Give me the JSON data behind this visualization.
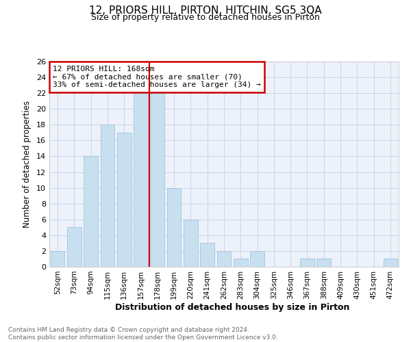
{
  "title": "12, PRIORS HILL, PIRTON, HITCHIN, SG5 3QA",
  "subtitle": "Size of property relative to detached houses in Pirton",
  "xlabel": "Distribution of detached houses by size in Pirton",
  "ylabel": "Number of detached properties",
  "categories": [
    "52sqm",
    "73sqm",
    "94sqm",
    "115sqm",
    "136sqm",
    "157sqm",
    "178sqm",
    "199sqm",
    "220sqm",
    "241sqm",
    "262sqm",
    "283sqm",
    "304sqm",
    "325sqm",
    "346sqm",
    "367sqm",
    "388sqm",
    "409sqm",
    "430sqm",
    "451sqm",
    "472sqm"
  ],
  "values": [
    2,
    5,
    14,
    18,
    17,
    22,
    22,
    10,
    6,
    3,
    2,
    1,
    2,
    0,
    0,
    1,
    1,
    0,
    0,
    0,
    1
  ],
  "bar_color": "#c8dff0",
  "bar_edge_color": "#a0c4e0",
  "vline_x": 5.5,
  "vline_color": "#cc0000",
  "annotation_text": "12 PRIORS HILL: 168sqm\n← 67% of detached houses are smaller (70)\n33% of semi-detached houses are larger (34) →",
  "annotation_box_edge_color": "#cc0000",
  "ylim": [
    0,
    26
  ],
  "yticks": [
    0,
    2,
    4,
    6,
    8,
    10,
    12,
    14,
    16,
    18,
    20,
    22,
    24,
    26
  ],
  "grid_color": "#c8d4e8",
  "footer_text": "Contains HM Land Registry data © Crown copyright and database right 2024.\nContains public sector information licensed under the Open Government Licence v3.0.",
  "background_color": "#edf2fa"
}
